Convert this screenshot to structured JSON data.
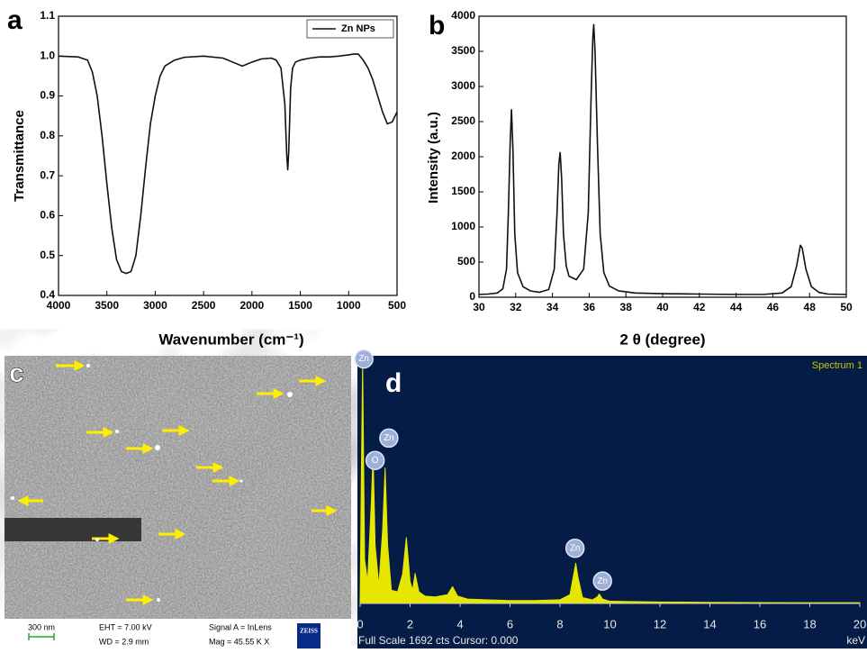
{
  "chart_data": [
    {
      "type": "line",
      "panel_label": "a",
      "x_label": "Wavenumber (cm⁻¹)",
      "y_label": "Transmittance",
      "xlim": [
        4000,
        500
      ],
      "xticks": [
        4000,
        3500,
        3000,
        2500,
        2000,
        1500,
        1000,
        500
      ],
      "ylim": [
        0.4,
        1.1
      ],
      "yticks": [
        0.4,
        0.5,
        0.6,
        0.7,
        0.8,
        0.9,
        {
          "value": 1,
          "label": "1.0"
        },
        1.1
      ],
      "legend": "top-right",
      "x": [
        4000,
        3800,
        3700,
        3650,
        3600,
        3550,
        3500,
        3450,
        3400,
        3350,
        3300,
        3250,
        3200,
        3150,
        3100,
        3050,
        3000,
        2950,
        2900,
        2800,
        2700,
        2500,
        2300,
        2200,
        2100,
        2000,
        1900,
        1800,
        1750,
        1700,
        1660,
        1640,
        1630,
        1620,
        1600,
        1580,
        1550,
        1500,
        1400,
        1300,
        1200,
        1100,
        1000,
        950,
        900,
        850,
        800,
        750,
        700,
        650,
        600,
        550,
        500
      ],
      "series": [
        {
          "name": "Zn NPs",
          "color": "#111111",
          "values": [
            1.0,
            0.998,
            0.99,
            0.96,
            0.9,
            0.8,
            0.68,
            0.57,
            0.49,
            0.46,
            0.455,
            0.46,
            0.5,
            0.6,
            0.72,
            0.83,
            0.9,
            0.95,
            0.975,
            0.99,
            0.997,
            1.0,
            0.995,
            0.985,
            0.975,
            0.985,
            0.993,
            0.995,
            0.99,
            0.97,
            0.88,
            0.75,
            0.715,
            0.76,
            0.92,
            0.97,
            0.985,
            0.99,
            0.995,
            0.998,
            0.998,
            1.0,
            1.003,
            1.005,
            1.005,
            0.99,
            0.97,
            0.94,
            0.9,
            0.86,
            0.83,
            0.835,
            0.86
          ]
        }
      ]
    },
    {
      "type": "line",
      "panel_label": "b",
      "x_label": "2 θ  (degree)",
      "y_label": "Intensity (a.u.)",
      "xlim": [
        30,
        50
      ],
      "xticks": [
        30,
        32,
        34,
        36,
        38,
        40,
        42,
        44,
        46,
        48,
        50
      ],
      "ylim": [
        0,
        4000
      ],
      "yticks": [
        0,
        500,
        1000,
        1500,
        2000,
        2500,
        3000,
        3500,
        4000
      ],
      "x": [
        30,
        30.5,
        31,
        31.3,
        31.5,
        31.6,
        31.7,
        31.77,
        31.85,
        31.95,
        32.1,
        32.4,
        32.8,
        33.3,
        33.8,
        34.1,
        34.25,
        34.35,
        34.42,
        34.5,
        34.6,
        34.75,
        34.9,
        35.3,
        35.7,
        35.95,
        36.1,
        36.2,
        36.25,
        36.32,
        36.45,
        36.6,
        36.8,
        37.1,
        37.6,
        38.5,
        40,
        42,
        44,
        45.5,
        46.5,
        47,
        47.3,
        47.5,
        47.6,
        47.8,
        48.1,
        48.5,
        49,
        50
      ],
      "series": [
        {
          "color": "#111111",
          "values": [
            40,
            45,
            60,
            120,
            400,
            1200,
            2200,
            2670,
            2100,
            900,
            350,
            150,
            90,
            70,
            110,
            400,
            1200,
            1900,
            2060,
            1700,
            900,
            450,
            300,
            250,
            400,
            1200,
            2800,
            3700,
            3880,
            3500,
            2200,
            900,
            350,
            160,
            90,
            60,
            50,
            45,
            40,
            40,
            60,
            150,
            450,
            740,
            700,
            400,
            150,
            70,
            45,
            40
          ]
        }
      ]
    },
    {
      "type": "area",
      "panel_label": "d",
      "subtitle": "Spectrum 1",
      "footer": "Full Scale 1692 cts Cursor: 0.000",
      "x_unit": "keV",
      "background": "#041c46",
      "xlim": [
        0,
        20
      ],
      "xticks": [
        0,
        2,
        4,
        6,
        8,
        10,
        12,
        14,
        16,
        18,
        20
      ],
      "ylim": [
        0,
        1692
      ],
      "x": [
        0,
        0.05,
        0.1,
        0.18,
        0.3,
        0.45,
        0.52,
        0.6,
        0.75,
        0.9,
        1.0,
        1.1,
        1.25,
        1.5,
        1.7,
        1.85,
        2.0,
        2.1,
        2.2,
        2.35,
        2.6,
        3.0,
        3.5,
        3.7,
        3.9,
        4.3,
        5,
        6,
        7,
        8,
        8.4,
        8.55,
        8.63,
        8.72,
        8.9,
        9.3,
        9.5,
        9.57,
        9.7,
        10,
        12,
        14,
        16,
        18,
        20
      ],
      "series": [
        {
          "color": "#e6e600",
          "values": [
            0,
            900,
            1650,
            300,
            150,
            700,
            1020,
            400,
            120,
            500,
            925,
            400,
            90,
            80,
            200,
            450,
            150,
            90,
            205,
            80,
            50,
            45,
            60,
            115,
            50,
            30,
            25,
            20,
            20,
            25,
            60,
            200,
            275,
            180,
            40,
            25,
            45,
            65,
            30,
            15,
            10,
            8,
            6,
            5,
            5
          ]
        }
      ],
      "peak_labels": [
        {
          "label": "Zn",
          "x": 0.15,
          "y": 1670
        },
        {
          "label": "O",
          "x": 0.6,
          "y": 977
        },
        {
          "label": "Zn",
          "x": 1.15,
          "y": 1130
        },
        {
          "label": "Zn",
          "x": 8.6,
          "y": 377
        },
        {
          "label": "Zn",
          "x": 9.7,
          "y": 153
        }
      ]
    }
  ],
  "sem_panel": {
    "panel_label": "c",
    "scale_bar": "300 nm",
    "eht": "EHT =  7.00 kV",
    "wd": "WD =  2.9 mm",
    "signal": "Signal A = InLens",
    "mag": "Mag =   45.55 K X",
    "logo": "ZEISS"
  }
}
